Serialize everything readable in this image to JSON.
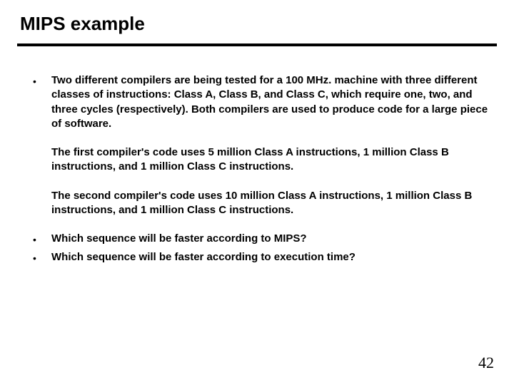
{
  "title": "MIPS example",
  "divider_color": "#000000",
  "text_color": "#000000",
  "background_color": "#ffffff",
  "bullets": {
    "para1": "Two different compilers are being tested for a 100 MHz. machine with three different classes of instructions:  Class A, Class B, and Class C, which require one, two, and three cycles (respectively).  Both compilers are used to produce code for a large piece of software.",
    "para2": "The first compiler's code uses 5 million Class A instructions, 1 million Class B instructions, and 1 million Class C instructions.",
    "para3": "The second compiler's code uses 10 million Class A instructions, 1 million Class B instructions, and 1 million Class C instructions.",
    "q1": "Which sequence will be faster according to MIPS?",
    "q2": "Which sequence will be faster according to execution time?"
  },
  "page_number": "42"
}
